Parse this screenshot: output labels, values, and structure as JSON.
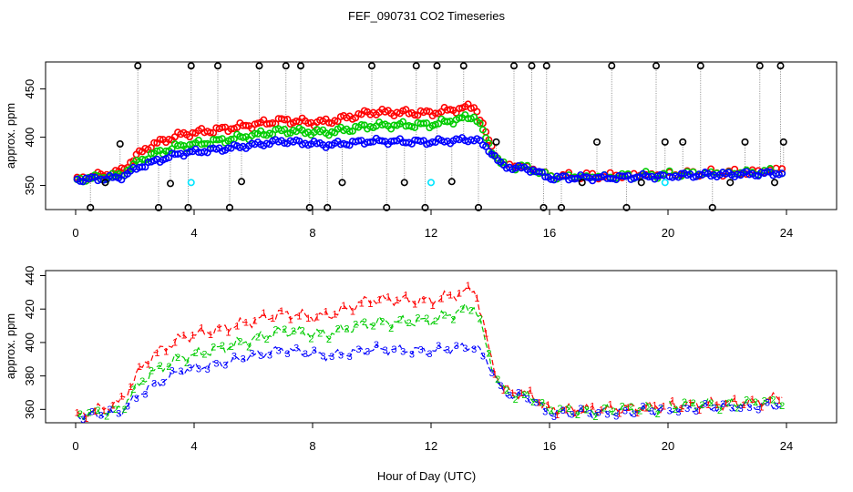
{
  "figure": {
    "title": "FEF_090731  CO2 Timeseries",
    "xlabel": "Hour of Day (UTC)"
  },
  "colors": {
    "series1": "#ff0000",
    "series2": "#00cc00",
    "series3": "#0000ff",
    "flag": "#000000",
    "cal": "#00e5ff",
    "connector": "#888888"
  },
  "chart_data": [
    {
      "type": "scatter",
      "panel": "top",
      "ylabel": "approx. ppm",
      "xlim": [
        -1,
        25
      ],
      "ylim": [
        325,
        478
      ],
      "xticks": [
        0,
        4,
        8,
        12,
        16,
        20,
        24
      ],
      "yticks": [
        350,
        400,
        450
      ],
      "series": [
        {
          "name": "1",
          "color": "#ff0000"
        },
        {
          "name": "2",
          "color": "#00cc00"
        },
        {
          "name": "3",
          "color": "#0000ff"
        },
        {
          "name": "flagged",
          "color": "#000000",
          "x": [
            0.5,
            1.0,
            1.5,
            2.1,
            2.8,
            3.2,
            3.8,
            3.9,
            4.8,
            5.2,
            5.6,
            6.2,
            7.1,
            7.6,
            7.9,
            8.5,
            9.0,
            10.0,
            10.5,
            11.1,
            11.5,
            11.8,
            12.2,
            12.7,
            13.1,
            13.6,
            14.2,
            14.8,
            15.4,
            15.8,
            15.9,
            16.4,
            17.1,
            17.6,
            18.1,
            18.6,
            19.1,
            19.6,
            19.9,
            20.5,
            21.1,
            21.5,
            22.1,
            22.6,
            23.1,
            23.6,
            23.8,
            23.9
          ],
          "y": [
            327,
            353,
            393,
            474,
            327,
            352,
            327,
            474,
            474,
            327,
            354,
            474,
            474,
            474,
            327,
            327,
            353,
            474,
            327,
            353,
            474,
            327,
            474,
            354,
            474,
            327,
            395,
            474,
            474,
            327,
            474,
            327,
            353,
            395,
            474,
            327,
            353,
            474,
            395,
            395,
            474,
            327,
            353,
            395,
            474,
            353,
            474,
            395
          ]
        },
        {
          "name": "calibration",
          "color": "#00e5ff",
          "x": [
            3.9,
            12.0,
            19.9
          ],
          "y": [
            353,
            353,
            353
          ]
        }
      ]
    },
    {
      "type": "line",
      "panel": "bottom",
      "ylabel": "approx. ppm",
      "xlim": [
        -1,
        25
      ],
      "ylim": [
        352,
        443
      ],
      "xticks": [
        0,
        4,
        8,
        12,
        16,
        20,
        24
      ],
      "yticks": [
        360,
        380,
        400,
        420,
        440
      ],
      "series": [
        {
          "name": "1",
          "color": "#ff0000"
        },
        {
          "name": "2",
          "color": "#00cc00"
        },
        {
          "name": "3",
          "color": "#0000ff"
        }
      ]
    }
  ]
}
